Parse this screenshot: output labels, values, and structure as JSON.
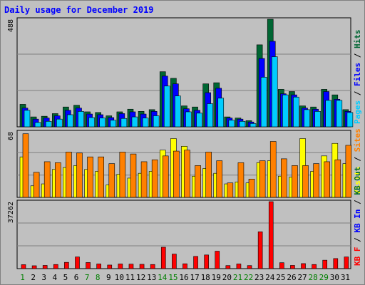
{
  "title": "Daily usage for December 2019",
  "colors": {
    "hits": "#006633",
    "files": "#0000ff",
    "pages": "#00ccff",
    "visits": "#ffff00",
    "sites": "#ff8000",
    "kbin": "#0000ff",
    "kbout": "#006633",
    "kbf": "#ff0000",
    "plot_bg": "#c0c0c0",
    "weekend_day": "#007f00",
    "weekday": "#000000"
  },
  "chart_data": [
    {
      "type": "bar",
      "title": "",
      "ymax_label": "488",
      "ylim": [
        0,
        488
      ],
      "side_label": [
        {
          "text": "Pages",
          "color": "#00ccff"
        },
        {
          "text": " / ",
          "color": "#000000"
        },
        {
          "text": "Files",
          "color": "#0000ff"
        },
        {
          "text": " / ",
          "color": "#000000"
        },
        {
          "text": "Hits",
          "color": "#006633"
        }
      ],
      "categories": [
        "1",
        "2",
        "3",
        "4",
        "5",
        "6",
        "7",
        "8",
        "9",
        "10",
        "11",
        "12",
        "13",
        "14",
        "15",
        "16",
        "17",
        "18",
        "19",
        "20",
        "21",
        "22",
        "23",
        "24",
        "25",
        "26",
        "27",
        "28",
        "29",
        "30",
        "31"
      ],
      "series": [
        {
          "name": "Hits",
          "color": "#006633",
          "values": [
            102,
            45,
            48,
            60,
            90,
            98,
            68,
            65,
            50,
            68,
            80,
            70,
            78,
            250,
            220,
            95,
            90,
            195,
            200,
            45,
            40,
            28,
            372,
            488,
            170,
            160,
            95,
            90,
            170,
            145,
            78
          ]
        },
        {
          "name": "Files",
          "color": "#0000ff",
          "values": [
            85,
            35,
            40,
            50,
            75,
            85,
            58,
            55,
            42,
            60,
            68,
            58,
            70,
            230,
            195,
            82,
            75,
            155,
            175,
            40,
            35,
            22,
            310,
            388,
            150,
            145,
            85,
            80,
            160,
            125,
            70
          ]
        },
        {
          "name": "Pages",
          "color": "#00ccff",
          "values": [
            75,
            20,
            25,
            35,
            55,
            70,
            42,
            40,
            30,
            38,
            45,
            40,
            50,
            185,
            140,
            68,
            62,
            105,
            130,
            30,
            25,
            15,
            225,
            318,
            145,
            135,
            78,
            70,
            120,
            120,
            65
          ]
        }
      ]
    },
    {
      "type": "bar",
      "title": "",
      "ymax_label": "68",
      "ylim": [
        0,
        68
      ],
      "side_label": [
        {
          "text": "Visits",
          "color": "#ffff00"
        },
        {
          "text": " / ",
          "color": "#000000"
        },
        {
          "text": "Sites",
          "color": "#ff8000"
        }
      ],
      "categories": [
        "1",
        "2",
        "3",
        "4",
        "5",
        "6",
        "7",
        "8",
        "9",
        "10",
        "11",
        "12",
        "13",
        "14",
        "15",
        "16",
        "17",
        "18",
        "19",
        "20",
        "21",
        "22",
        "23",
        "24",
        "25",
        "26",
        "27",
        "28",
        "29",
        "30",
        "31"
      ],
      "series": [
        {
          "name": "Visits",
          "color": "#ffff00",
          "values": [
            42,
            12,
            14,
            29,
            31,
            33,
            29,
            27,
            13,
            24,
            20,
            25,
            27,
            49,
            61,
            53,
            22,
            30,
            25,
            14,
            16,
            15,
            36,
            38,
            22,
            21,
            61,
            27,
            43,
            56,
            35
          ]
        },
        {
          "name": "Sites",
          "color": "#ff8000",
          "values": [
            66,
            26,
            37,
            36,
            47,
            46,
            42,
            42,
            35,
            47,
            45,
            37,
            39,
            43,
            48,
            49,
            33,
            47,
            38,
            15,
            36,
            19,
            38,
            58,
            40,
            33,
            33,
            35,
            37,
            39,
            54
          ]
        }
      ]
    },
    {
      "type": "bar",
      "title": "",
      "ymax_label": "37262",
      "ylim": [
        0,
        37262
      ],
      "side_label": [
        {
          "text": "KB F",
          "color": "#ff0000"
        },
        {
          "text": " / ",
          "color": "#000000"
        },
        {
          "text": "KB In",
          "color": "#0000ff"
        },
        {
          "text": " / ",
          "color": "#000000"
        },
        {
          "text": "KB Out",
          "color": "#006633"
        }
      ],
      "categories": [
        "1",
        "2",
        "3",
        "4",
        "5",
        "6",
        "7",
        "8",
        "9",
        "10",
        "11",
        "12",
        "13",
        "14",
        "15",
        "16",
        "17",
        "18",
        "19",
        "20",
        "21",
        "22",
        "23",
        "24",
        "25",
        "26",
        "27",
        "28",
        "29",
        "30",
        "31"
      ],
      "series": [
        {
          "name": "KB F",
          "color": "#ff0000",
          "values": [
            2200,
            1600,
            1800,
            2300,
            3500,
            6500,
            3400,
            2600,
            2000,
            2600,
            2500,
            2400,
            2300,
            11900,
            8100,
            2700,
            6800,
            7600,
            9700,
            1700,
            2600,
            1700,
            20500,
            37262,
            3300,
            1800,
            2800,
            2300,
            4700,
            5600,
            6500
          ]
        }
      ]
    }
  ]
}
